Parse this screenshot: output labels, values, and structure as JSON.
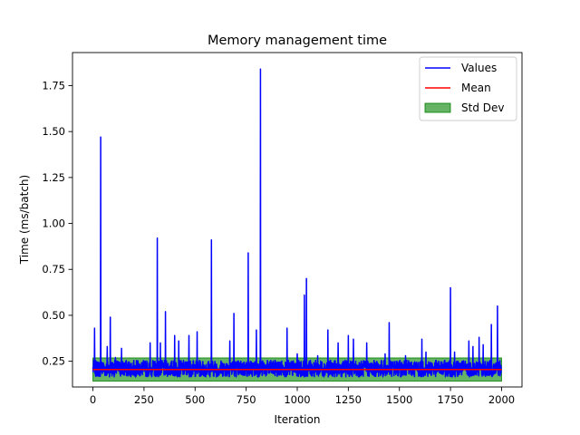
{
  "chart_data": {
    "type": "line",
    "title": "Memory management time",
    "xlabel": "Iteration",
    "ylabel": "Time (ms/batch)",
    "xlim": [
      -100,
      2100
    ],
    "ylim": [
      0.11,
      1.93
    ],
    "xticks": [
      0,
      250,
      500,
      750,
      1000,
      1250,
      1500,
      1750,
      2000
    ],
    "yticks": [
      0.25,
      0.5,
      0.75,
      1.0,
      1.25,
      1.5,
      1.75
    ],
    "ytick_labels": [
      "0.25",
      "0.50",
      "0.75",
      "1.00",
      "1.25",
      "1.50",
      "1.75"
    ],
    "grid": false,
    "legend_position": "top-right",
    "n_points": 2000,
    "baseline": 0.205,
    "noise_low": 0.165,
    "noise_high": 0.255,
    "spikes": [
      {
        "x": 8,
        "y": 0.43
      },
      {
        "x": 38,
        "y": 1.47
      },
      {
        "x": 70,
        "y": 0.33
      },
      {
        "x": 85,
        "y": 0.49
      },
      {
        "x": 110,
        "y": 0.27
      },
      {
        "x": 140,
        "y": 0.32
      },
      {
        "x": 280,
        "y": 0.35
      },
      {
        "x": 315,
        "y": 0.92
      },
      {
        "x": 330,
        "y": 0.35
      },
      {
        "x": 355,
        "y": 0.52
      },
      {
        "x": 400,
        "y": 0.39
      },
      {
        "x": 420,
        "y": 0.36
      },
      {
        "x": 470,
        "y": 0.39
      },
      {
        "x": 510,
        "y": 0.41
      },
      {
        "x": 580,
        "y": 0.91
      },
      {
        "x": 670,
        "y": 0.36
      },
      {
        "x": 690,
        "y": 0.51
      },
      {
        "x": 760,
        "y": 0.84
      },
      {
        "x": 800,
        "y": 0.42
      },
      {
        "x": 820,
        "y": 1.84
      },
      {
        "x": 950,
        "y": 0.43
      },
      {
        "x": 1000,
        "y": 0.29
      },
      {
        "x": 1035,
        "y": 0.61
      },
      {
        "x": 1045,
        "y": 0.7
      },
      {
        "x": 1100,
        "y": 0.28
      },
      {
        "x": 1150,
        "y": 0.42
      },
      {
        "x": 1200,
        "y": 0.35
      },
      {
        "x": 1250,
        "y": 0.39
      },
      {
        "x": 1275,
        "y": 0.37
      },
      {
        "x": 1340,
        "y": 0.35
      },
      {
        "x": 1430,
        "y": 0.29
      },
      {
        "x": 1450,
        "y": 0.46
      },
      {
        "x": 1530,
        "y": 0.28
      },
      {
        "x": 1610,
        "y": 0.37
      },
      {
        "x": 1630,
        "y": 0.3
      },
      {
        "x": 1750,
        "y": 0.65
      },
      {
        "x": 1770,
        "y": 0.3
      },
      {
        "x": 1840,
        "y": 0.36
      },
      {
        "x": 1860,
        "y": 0.33
      },
      {
        "x": 1890,
        "y": 0.38
      },
      {
        "x": 1910,
        "y": 0.34
      },
      {
        "x": 1950,
        "y": 0.45
      },
      {
        "x": 1980,
        "y": 0.55
      }
    ],
    "series": [
      {
        "name": "Values",
        "color": "#0000ff",
        "kind": "line"
      },
      {
        "name": "Mean",
        "color": "#ff0000",
        "kind": "line",
        "value": 0.205
      },
      {
        "name": "Std Dev",
        "color": "#008000",
        "kind": "band",
        "opacity": 0.6,
        "lower": 0.142,
        "upper": 0.268
      }
    ]
  }
}
